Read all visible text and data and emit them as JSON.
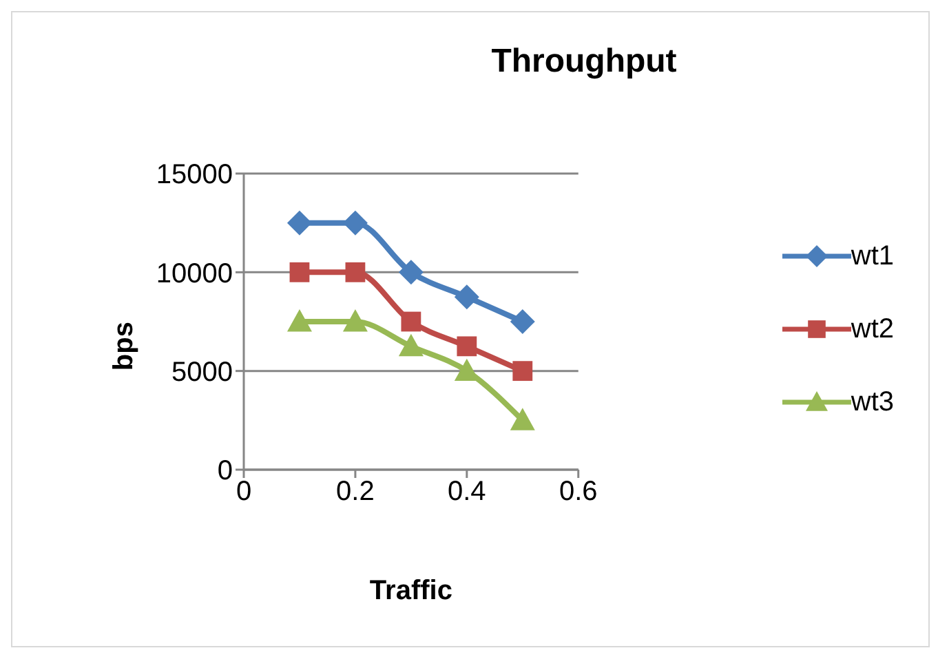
{
  "chart_data": {
    "type": "line",
    "title": "Throughput",
    "xlabel": "Traffic",
    "ylabel": "bps",
    "x": [
      0.1,
      0.2,
      0.3,
      0.4,
      0.5
    ],
    "series": [
      {
        "name": "wt1",
        "color": "#4a7ebb",
        "marker": "diamond",
        "values": [
          12500,
          12500,
          10000,
          8750,
          7500
        ]
      },
      {
        "name": "wt2",
        "color": "#be4b48",
        "marker": "square",
        "values": [
          10000,
          10000,
          7500,
          6250,
          5000
        ]
      },
      {
        "name": "wt3",
        "color": "#98b954",
        "marker": "triangle",
        "values": [
          7500,
          7500,
          6250,
          5000,
          2500
        ]
      }
    ],
    "xlim": [
      0,
      0.6
    ],
    "xticks": [
      0,
      0.2,
      0.4,
      0.6
    ],
    "ylim": [
      0,
      15000
    ],
    "yticks": [
      0,
      5000,
      10000,
      15000
    ],
    "grid": "y",
    "legend": "right",
    "line_style": "solid"
  }
}
